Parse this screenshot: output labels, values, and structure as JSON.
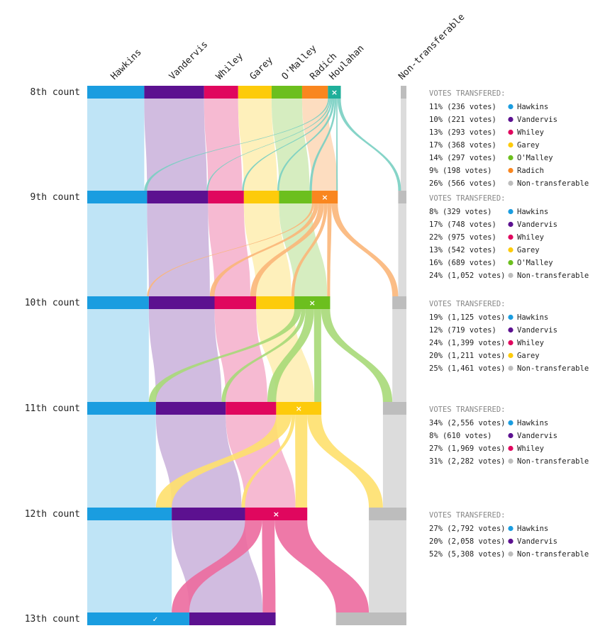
{
  "colors": {
    "Hawkins": "#1a9de0",
    "Vandervis": "#5c1190",
    "Whiley": "#e0075e",
    "Garey": "#fdcb0b",
    "O'Malley": "#6cbf1e",
    "Radich": "#f9861f",
    "Houlahan": "#1faf9a",
    "Non-transferable": "#bdbdbd"
  },
  "icons": {
    "eliminated": "cross-icon",
    "winner": "check-icon"
  },
  "chart_data": {
    "type": "sankey",
    "title": "",
    "candidates": [
      "Hawkins",
      "Vandervis",
      "Whiley",
      "Garey",
      "O'Malley",
      "Radich",
      "Houlahan",
      "Non-transferable"
    ],
    "column_labels": [
      "Hawkins",
      "Vandervis",
      "Whiley",
      "Garey",
      "O'Malley",
      "Radich",
      "Houlahan",
      "Non-transferable"
    ],
    "rows": [
      {
        "label": "8th count",
        "bars": [
          {
            "name": "Hawkins",
            "share": 0.1787
          },
          {
            "name": "Vandervis",
            "share": 0.1875
          },
          {
            "name": "Whiley",
            "share": 0.1066
          },
          {
            "name": "Garey",
            "share": 0.1048
          },
          {
            "name": "O'Malley",
            "share": 0.0956
          },
          {
            "name": "Radich",
            "share": 0.0809
          },
          {
            "name": "Houlahan",
            "share": 0.0404,
            "eliminated": true
          },
          {
            "name": "Non-transferable",
            "share": 0.0147
          }
        ]
      },
      {
        "label": "9th count",
        "bars": [
          {
            "name": "Hawkins",
            "share": 0.1875
          },
          {
            "name": "Vandervis",
            "share": 0.1912
          },
          {
            "name": "Whiley",
            "share": 0.1121
          },
          {
            "name": "Garey",
            "share": 0.1103
          },
          {
            "name": "O'Malley",
            "share": 0.1029
          },
          {
            "name": "Radich",
            "share": 0.0809,
            "eliminated": true
          },
          {
            "name": "Non-transferable",
            "share": 0.0257
          }
        ]
      },
      {
        "label": "10th count",
        "bars": [
          {
            "name": "Hawkins",
            "share": 0.193
          },
          {
            "name": "Vandervis",
            "share": 0.2059
          },
          {
            "name": "Whiley",
            "share": 0.1305
          },
          {
            "name": "Garey",
            "share": 0.1195
          },
          {
            "name": "O'Malley",
            "share": 0.1121,
            "eliminated": true
          },
          {
            "name": "Non-transferable",
            "share": 0.0441
          }
        ]
      },
      {
        "label": "11th count",
        "bars": [
          {
            "name": "Hawkins",
            "share": 0.2151
          },
          {
            "name": "Vandervis",
            "share": 0.2188
          },
          {
            "name": "Whiley",
            "share": 0.1581
          },
          {
            "name": "Garey",
            "share": 0.1415,
            "eliminated": true
          },
          {
            "name": "Non-transferable",
            "share": 0.0735
          }
        ]
      },
      {
        "label": "12th count",
        "bars": [
          {
            "name": "Hawkins",
            "share": 0.2647
          },
          {
            "name": "Vandervis",
            "share": 0.2298
          },
          {
            "name": "Whiley",
            "share": 0.1949,
            "eliminated": true
          },
          {
            "name": "Non-transferable",
            "share": 0.1176
          }
        ]
      },
      {
        "label": "13th count",
        "bars": [
          {
            "name": "Hawkins",
            "share": 0.3199,
            "winner": true
          },
          {
            "name": "Vandervis",
            "share": 0.2702
          },
          {
            "name": "Non-transferable",
            "share": 0.2206
          }
        ]
      }
    ],
    "transfers": [
      {
        "heading": "VOTES TRANSFERED:",
        "items": [
          {
            "text": "11% (236 votes)",
            "to": "Hawkins",
            "share": 0.11
          },
          {
            "text": "10% (221 votes)",
            "to": "Vandervis",
            "share": 0.1
          },
          {
            "text": "13% (293 votes)",
            "to": "Whiley",
            "share": 0.13
          },
          {
            "text": "17% (368 votes)",
            "to": "Garey",
            "share": 0.17
          },
          {
            "text": "14% (297 votes)",
            "to": "O'Malley",
            "share": 0.14
          },
          {
            "text": "9% (198 votes)",
            "to": "Radich",
            "share": 0.09
          },
          {
            "text": "26% (566 votes)",
            "to": "Non-transferable",
            "share": 0.26
          }
        ]
      },
      {
        "heading": "VOTES TRANSFERED:",
        "items": [
          {
            "text": "8% (329 votes)",
            "to": "Hawkins",
            "share": 0.08
          },
          {
            "text": "17% (748 votes)",
            "to": "Vandervis",
            "share": 0.17
          },
          {
            "text": "22% (975 votes)",
            "to": "Whiley",
            "share": 0.22
          },
          {
            "text": "13% (542 votes)",
            "to": "Garey",
            "share": 0.13
          },
          {
            "text": "16% (689 votes)",
            "to": "O'Malley",
            "share": 0.16
          },
          {
            "text": "24% (1,052 votes)",
            "to": "Non-transferable",
            "share": 0.24
          }
        ]
      },
      {
        "heading": "VOTES TRANSFERED:",
        "items": [
          {
            "text": "19% (1,125 votes)",
            "to": "Hawkins",
            "share": 0.19
          },
          {
            "text": "12% (719 votes)",
            "to": "Vandervis",
            "share": 0.12
          },
          {
            "text": "24% (1,399 votes)",
            "to": "Whiley",
            "share": 0.24
          },
          {
            "text": "20% (1,211 votes)",
            "to": "Garey",
            "share": 0.2
          },
          {
            "text": "25% (1,461 votes)",
            "to": "Non-transferable",
            "share": 0.25
          }
        ]
      },
      {
        "heading": "VOTES TRANSFERED:",
        "items": [
          {
            "text": "34% (2,556 votes)",
            "to": "Hawkins",
            "share": 0.34
          },
          {
            "text": "8% (610 votes)",
            "to": "Vandervis",
            "share": 0.08
          },
          {
            "text": "27% (1,969 votes)",
            "to": "Whiley",
            "share": 0.27
          },
          {
            "text": "31% (2,282 votes)",
            "to": "Non-transferable",
            "share": 0.31
          }
        ]
      },
      {
        "heading": "VOTES TRANSFERED:",
        "items": [
          {
            "text": "27% (2,792 votes)",
            "to": "Hawkins",
            "share": 0.27
          },
          {
            "text": "20% (2,058 votes)",
            "to": "Vandervis",
            "share": 0.2
          },
          {
            "text": "52% (5,308 votes)",
            "to": "Non-transferable",
            "share": 0.52
          }
        ]
      }
    ]
  }
}
